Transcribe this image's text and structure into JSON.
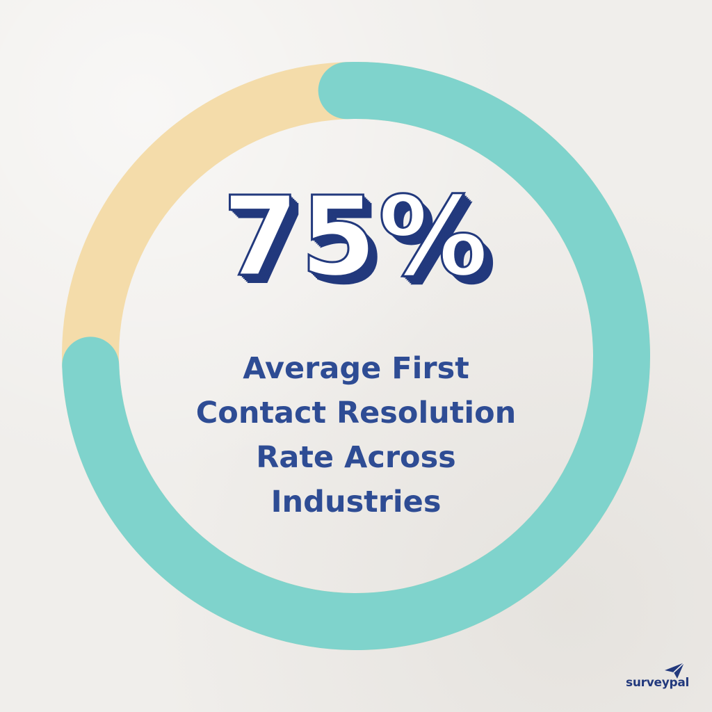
{
  "chart_data": {
    "type": "donut",
    "value_percent": 75,
    "remainder_percent": 25,
    "colors": {
      "value": "#7fd3cc",
      "remainder": "#f4dcaa"
    }
  },
  "headline": {
    "value_text": "75%",
    "caption_lines": [
      "Average First",
      "Contact Resolution",
      "Rate Across",
      "Industries"
    ]
  },
  "brand": {
    "name": "surveypal",
    "icon": "paper-plane-icon",
    "color": "#22397d"
  }
}
